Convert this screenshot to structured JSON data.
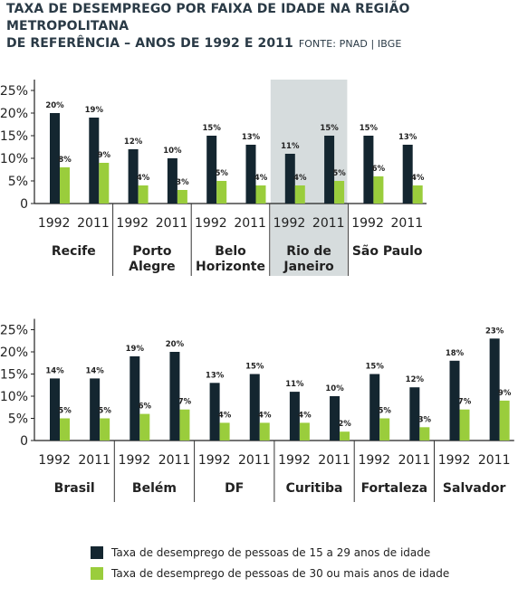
{
  "header": {
    "title_line1": "TAXA DE DESEMPREGO POR FAIXA DE IDADE NA REGIÃO METROPOLITANA",
    "title_line2": "DE REFERÊNCIA – ANOS DE 1992 E 2011",
    "source": "FONTE: PNAD | IBGE"
  },
  "legend": {
    "young": "Taxa de desemprego de pessoas de 15 a 29 anos de idade",
    "older": "Taxa de desemprego de pessoas de 30 ou mais anos de idade"
  },
  "colors": {
    "young": "#142630",
    "older": "#9acd3c",
    "highlight": "#d6dcdd"
  },
  "chart_data": [
    {
      "type": "bar",
      "ylim": [
        0,
        25
      ],
      "yticks": [
        "25%",
        "20%",
        "15%",
        "10%",
        "5%",
        "0"
      ],
      "highlight_group": "Rio de Janeiro",
      "groups": [
        {
          "label": [
            "Recife"
          ],
          "name": "Recife",
          "years": [
            {
              "year": "1992",
              "young": 20,
              "older": 8
            },
            {
              "year": "2011",
              "young": 19,
              "older": 9
            }
          ]
        },
        {
          "label": [
            "Porto",
            "Alegre"
          ],
          "name": "Porto Alegre",
          "years": [
            {
              "year": "1992",
              "young": 12,
              "older": 4
            },
            {
              "year": "2011",
              "young": 10,
              "older": 3
            }
          ]
        },
        {
          "label": [
            "Belo",
            "Horizonte"
          ],
          "name": "Belo Horizonte",
          "years": [
            {
              "year": "1992",
              "young": 15,
              "older": 5
            },
            {
              "year": "2011",
              "young": 13,
              "older": 4
            }
          ]
        },
        {
          "label": [
            "Rio de",
            "Janeiro"
          ],
          "name": "Rio de Janeiro",
          "years": [
            {
              "year": "1992",
              "young": 11,
              "older": 4
            },
            {
              "year": "2011",
              "young": 15,
              "older": 5
            }
          ]
        },
        {
          "label": [
            "São Paulo"
          ],
          "name": "São Paulo",
          "years": [
            {
              "year": "1992",
              "young": 15,
              "older": 6
            },
            {
              "year": "2011",
              "young": 13,
              "older": 4
            }
          ]
        }
      ]
    },
    {
      "type": "bar",
      "ylim": [
        0,
        25
      ],
      "yticks": [
        "25%",
        "20%",
        "15%",
        "10%",
        "5%",
        "0"
      ],
      "groups": [
        {
          "label": [
            "Brasil"
          ],
          "name": "Brasil",
          "years": [
            {
              "year": "1992",
              "young": 14,
              "older": 5
            },
            {
              "year": "2011",
              "young": 14,
              "older": 5
            }
          ]
        },
        {
          "label": [
            "Belém"
          ],
          "name": "Belém",
          "years": [
            {
              "year": "1992",
              "young": 19,
              "older": 6
            },
            {
              "year": "2011",
              "young": 20,
              "older": 7
            }
          ]
        },
        {
          "label": [
            "DF"
          ],
          "name": "DF",
          "years": [
            {
              "year": "1992",
              "young": 13,
              "older": 4
            },
            {
              "year": "2011",
              "young": 15,
              "older": 4
            }
          ]
        },
        {
          "label": [
            "Curitiba"
          ],
          "name": "Curitiba",
          "years": [
            {
              "year": "1992",
              "young": 11,
              "older": 4
            },
            {
              "year": "2011",
              "young": 10,
              "older": 2
            }
          ]
        },
        {
          "label": [
            "Fortaleza"
          ],
          "name": "Fortaleza",
          "years": [
            {
              "year": "1992",
              "young": 15,
              "older": 5
            },
            {
              "year": "2011",
              "young": 12,
              "older": 3
            }
          ]
        },
        {
          "label": [
            "Salvador"
          ],
          "name": "Salvador",
          "years": [
            {
              "year": "1992",
              "young": 18,
              "older": 7
            },
            {
              "year": "2011",
              "young": 23,
              "older": 9
            }
          ]
        }
      ]
    }
  ]
}
